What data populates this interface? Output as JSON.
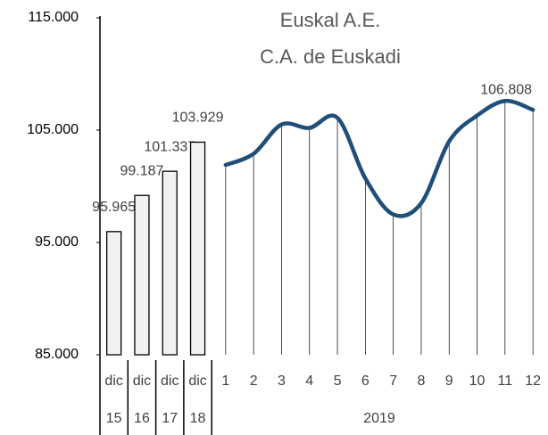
{
  "chart_data": {
    "type": "bar_line",
    "title": "Euskal A.E.",
    "subtitle": "C.A. de Euskadi",
    "categories": [
      "dic",
      "dic",
      "dic",
      "dic",
      "1",
      "2",
      "3",
      "4",
      "5",
      "6",
      "7",
      "8",
      "9",
      "10",
      "11",
      "12"
    ],
    "group_labels": [
      "15",
      "16",
      "17",
      "18",
      "2019"
    ],
    "series": [
      {
        "type": "bar",
        "color": "#f2f2f2",
        "values": [
          95965,
          99187,
          101337,
          103929,
          null,
          null,
          null,
          null,
          null,
          null,
          null,
          null,
          null,
          null,
          null,
          null
        ],
        "value_labels": [
          "95.965",
          "99.187",
          "101.337",
          "103.929",
          null,
          null,
          null,
          null,
          null,
          null,
          null,
          null,
          null,
          null,
          null,
          null
        ]
      },
      {
        "type": "line",
        "color": "#1f4e79",
        "values": [
          null,
          null,
          null,
          null,
          101900,
          102900,
          105500,
          105200,
          106100,
          100700,
          97500,
          98500,
          104000,
          106300,
          107600,
          106808
        ],
        "value_labels": [
          null,
          null,
          null,
          null,
          null,
          null,
          null,
          null,
          null,
          null,
          null,
          null,
          null,
          null,
          null,
          "106.808"
        ]
      }
    ],
    "ylim": [
      85000,
      115000
    ],
    "yticks": [
      {
        "value": 85000,
        "label": "85.000"
      },
      {
        "value": 95000,
        "label": "95.000"
      },
      {
        "value": 105000,
        "label": "105.000"
      },
      {
        "value": 115000,
        "label": "115.000"
      }
    ]
  }
}
